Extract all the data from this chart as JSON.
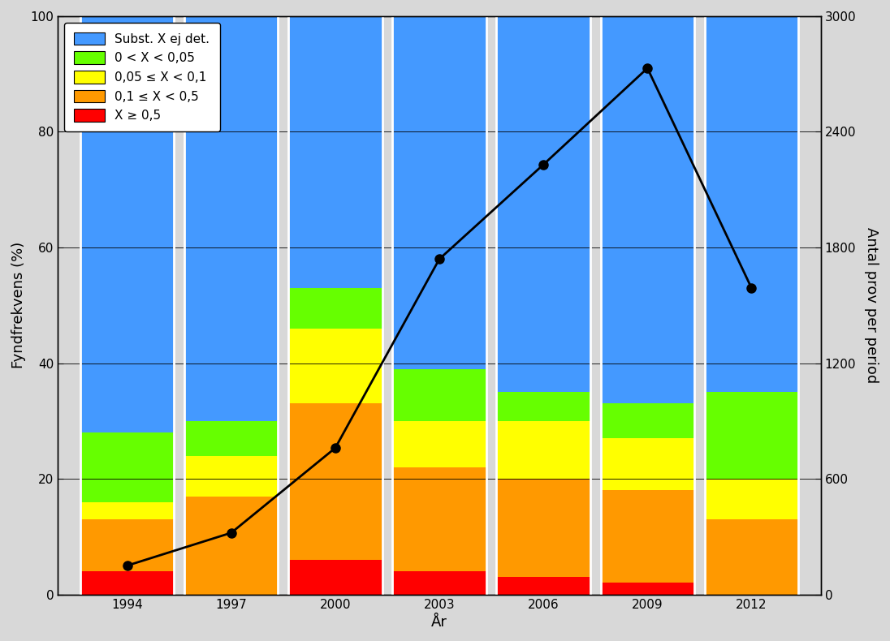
{
  "years": [
    1994,
    1997,
    2000,
    2003,
    2006,
    2009,
    2012
  ],
  "bar_width": 3.0,
  "stacked_data": {
    "red": [
      4,
      0,
      6,
      4,
      3,
      2,
      0
    ],
    "orange": [
      9,
      17,
      27,
      18,
      17,
      16,
      13
    ],
    "yellow": [
      3,
      7,
      13,
      8,
      10,
      9,
      7
    ],
    "green": [
      12,
      6,
      7,
      9,
      5,
      6,
      15
    ],
    "blue": [
      72,
      70,
      47,
      61,
      65,
      67,
      65
    ]
  },
  "colors": {
    "red": "#ff0000",
    "orange": "#ff9900",
    "yellow": "#ffff00",
    "green": "#66ff00",
    "blue": "#4499ff"
  },
  "line_values": [
    150,
    320,
    760,
    1740,
    2230,
    2730,
    1590
  ],
  "right_y_max": 3000,
  "left_y_max": 100,
  "xlabel": "År",
  "ylabel_left": "Fyndfrekvens (%)",
  "ylabel_right": "Antal prov per period",
  "legend_labels": {
    "blue": "Subst. X ej det.",
    "green": "0 < X < 0,05",
    "yellow": "0,05 ≤ X < 0,1",
    "orange": "0,1 ≤ X < 0,5",
    "red": "X ≥ 0,5"
  },
  "background_color": "#d8d8d8",
  "separator_color": "#ffffff",
  "xlim": [
    1992.0,
    2014.0
  ],
  "ylim_left": [
    0,
    100
  ],
  "ylim_right": [
    0,
    3000
  ],
  "yticks_left": [
    0,
    20,
    40,
    60,
    80,
    100
  ],
  "yticks_right": [
    0,
    600,
    1200,
    1800,
    2400,
    3000
  ]
}
